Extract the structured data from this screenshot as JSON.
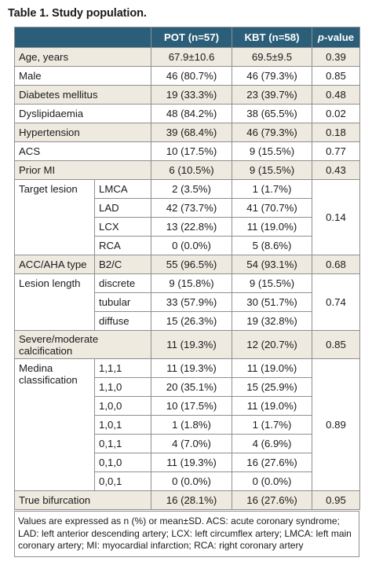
{
  "title": "Table 1. Study population.",
  "header": {
    "col1": "POT (n=57)",
    "col2": "KBT (n=58)",
    "col3_italic": "p",
    "col3_rest": "-value"
  },
  "rows": {
    "age": {
      "label": "Age, years",
      "pot": "67.9±10.6",
      "kbt": "69.5±9.5",
      "p": "0.39"
    },
    "male": {
      "label": "Male",
      "pot": "46 (80.7%)",
      "kbt": "46 (79.3%)",
      "p": "0.85"
    },
    "dm": {
      "label": "Diabetes mellitus",
      "pot": "19 (33.3%)",
      "kbt": "23 (39.7%)",
      "p": "0.48"
    },
    "dys": {
      "label": "Dyslipidaemia",
      "pot": "48 (84.2%)",
      "kbt": "38 (65.5%)",
      "p": "0.02"
    },
    "htn": {
      "label": "Hypertension",
      "pot": "39 (68.4%)",
      "kbt": "46 (79.3%)",
      "p": "0.18"
    },
    "acs": {
      "label": "ACS",
      "pot": "10 (17.5%)",
      "kbt": "9 (15.5%)",
      "p": "0.77"
    },
    "mi": {
      "label": "Prior MI",
      "pot": "6 (10.5%)",
      "kbt": "9 (15.5%)",
      "p": "0.43"
    }
  },
  "target": {
    "label": "Target lesion",
    "p": "0.14",
    "items": [
      {
        "sub": "LMCA",
        "pot": "2 (3.5%)",
        "kbt": "1 (1.7%)"
      },
      {
        "sub": "LAD",
        "pot": "42 (73.7%)",
        "kbt": "41 (70.7%)"
      },
      {
        "sub": "LCX",
        "pot": "13 (22.8%)",
        "kbt": "11 (19.0%)"
      },
      {
        "sub": "RCA",
        "pot": "0 (0.0%)",
        "kbt": "5 (8.6%)"
      }
    ]
  },
  "acc": {
    "label": "ACC/AHA type",
    "sub": "B2/C",
    "pot": "55 (96.5%)",
    "kbt": "54 (93.1%)",
    "p": "0.68"
  },
  "length": {
    "label": "Lesion length",
    "p": "0.74",
    "items": [
      {
        "sub": "discrete",
        "pot": "9 (15.8%)",
        "kbt": "9 (15.5%)"
      },
      {
        "sub": "tubular",
        "pot": "33 (57.9%)",
        "kbt": "30 (51.7%)"
      },
      {
        "sub": "diffuse",
        "pot": "15 (26.3%)",
        "kbt": "19 (32.8%)"
      }
    ]
  },
  "calc": {
    "label_line1": "Severe/moderate",
    "label_line2": "calcification",
    "pot": "11 (19.3%)",
    "kbt": "12 (20.7%)",
    "p": "0.85"
  },
  "medina": {
    "label_line1": "Medina",
    "label_line2": "classification",
    "p": "0.89",
    "items": [
      {
        "sub": "1,1,1",
        "pot": "11 (19.3%)",
        "kbt": "11 (19.0%)"
      },
      {
        "sub": "1,1,0",
        "pot": "20 (35.1%)",
        "kbt": "15 (25.9%)"
      },
      {
        "sub": "1,0,0",
        "pot": "10 (17.5%)",
        "kbt": "11 (19.0%)"
      },
      {
        "sub": "1,0,1",
        "pot": "1 (1.8%)",
        "kbt": "1 (1.7%)"
      },
      {
        "sub": "0,1,1",
        "pot": "4 (7.0%)",
        "kbt": "4 (6.9%)"
      },
      {
        "sub": "0,1,0",
        "pot": "11 (19.3%)",
        "kbt": "16 (27.6%)"
      },
      {
        "sub": "0,0,1",
        "pot": "0 (0.0%)",
        "kbt": "0 (0.0%)"
      }
    ]
  },
  "true_bif": {
    "label": "True bifurcation",
    "pot": "16 (28.1%)",
    "kbt": "16 (27.6%)",
    "p": "0.95"
  },
  "footnote": "Values are expressed as n (%) or mean±SD. ACS: acute coronary syndrome; LAD: left anterior descending artery; LCX: left circumflex artery; LMCA: left main coronary artery; MI: myocardial infarction; RCA: right coronary artery",
  "colors": {
    "header_bg": "#2b5e78",
    "shaded_row": "#efeae0",
    "border": "#8f8f8f"
  }
}
